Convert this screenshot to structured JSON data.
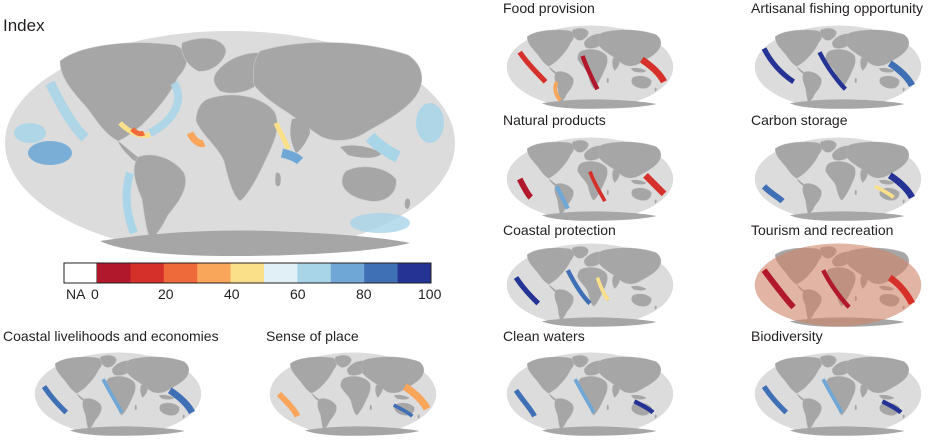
{
  "index_map": {
    "title": "Index"
  },
  "legend": {
    "na_label": "NA",
    "tick_labels": [
      "0",
      "20",
      "40",
      "60",
      "80",
      "100"
    ],
    "colors": [
      "#b2182b",
      "#d6302a",
      "#ef6a3a",
      "#f9a55a",
      "#fbe08a",
      "#e0f0f6",
      "#a8d5e8",
      "#6fa8d6",
      "#3f6fb5",
      "#253494"
    ]
  },
  "panels": [
    {
      "title": "Food provision"
    },
    {
      "title": "Artisanal fishing opportunity"
    },
    {
      "title": "Natural products"
    },
    {
      "title": "Carbon storage"
    },
    {
      "title": "Coastal protection"
    },
    {
      "title": "Tourism and recreation"
    },
    {
      "title": "Coastal livelihoods and economies"
    },
    {
      "title": "Sense of place"
    },
    {
      "title": "Clean waters"
    },
    {
      "title": "Biodiversity"
    }
  ],
  "colors": {
    "ocean": "#dcdcdc",
    "land": "#a6a6a6"
  }
}
